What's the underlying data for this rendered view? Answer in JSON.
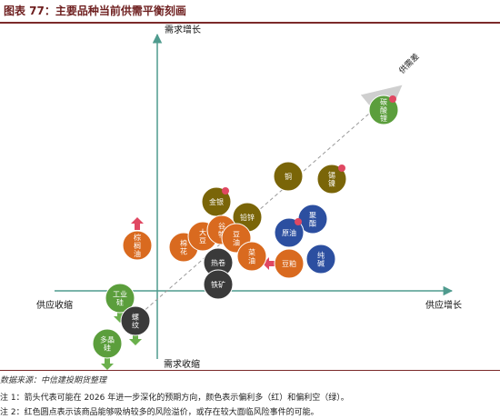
{
  "header": {
    "title": "图表 77：主要品种当前供需平衡刻画"
  },
  "axes": {
    "y_top": "需求增长",
    "y_bottom": "需求收缩",
    "x_left": "供应收缩",
    "x_right": "供应增长",
    "diagonal": "供需差"
  },
  "colors": {
    "orange": "#d96a1f",
    "olive": "#7a6508",
    "blue": "#2c4fa0",
    "dark": "#3a3a3a",
    "green": "#5b9e3c",
    "axis": "#4f9b8e",
    "arrow_red": "#e04862",
    "arrow_green": "#6ab04c"
  },
  "items": [
    {
      "id": "lithium-carbonate",
      "label": "碳酸锂",
      "color": "green"
    },
    {
      "id": "copper",
      "label": "铜",
      "color": "olive"
    },
    {
      "id": "tin-nickel",
      "label": "锡镍",
      "color": "olive"
    },
    {
      "id": "gold-silver",
      "label": "金银",
      "color": "olive"
    },
    {
      "id": "lead-zinc",
      "label": "铅锌",
      "color": "olive"
    },
    {
      "id": "polyester",
      "label": "聚酯",
      "color": "blue"
    },
    {
      "id": "crude-oil",
      "label": "原油",
      "color": "blue"
    },
    {
      "id": "soda-ash",
      "label": "纯碱",
      "color": "blue"
    },
    {
      "id": "palm-oil",
      "label": "棕榈油",
      "color": "orange"
    },
    {
      "id": "cotton",
      "label": "棉花",
      "color": "orange"
    },
    {
      "id": "soybean",
      "label": "大豆",
      "color": "orange"
    },
    {
      "id": "grain",
      "label": "谷物",
      "color": "orange"
    },
    {
      "id": "soybean-oil",
      "label": "豆油",
      "color": "orange"
    },
    {
      "id": "rapeseed-oil",
      "label": "菜油",
      "color": "orange"
    },
    {
      "id": "soybean-meal",
      "label": "豆粕",
      "color": "orange"
    },
    {
      "id": "hot-rolled-coil",
      "label": "热卷",
      "color": "dark"
    },
    {
      "id": "iron-ore",
      "label": "铁矿",
      "color": "dark"
    },
    {
      "id": "industrial-silicon",
      "label": "工业硅",
      "color": "green"
    },
    {
      "id": "rebar",
      "label": "螺纹",
      "color": "dark"
    },
    {
      "id": "polysilicon",
      "label": "多晶硅",
      "color": "green"
    }
  ],
  "footer": {
    "source": "数据来源：中信建投期货整理",
    "note1": "注 1：箭头代表可能在 2026 年进一步深化的预期方向，颜色表示偏利多（红）和偏利空（绿）。",
    "note2": "注 2：红色圆点表示该商品能够吸纳较多的风险溢价，或存在较大面临风险事件的可能。"
  }
}
